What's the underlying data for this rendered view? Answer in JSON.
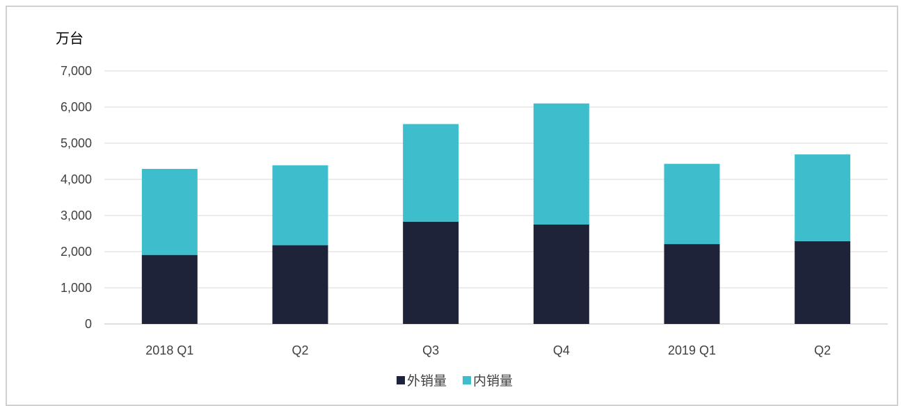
{
  "chart_data": {
    "type": "bar",
    "stacked": true,
    "ylabel": "万台",
    "ylim": [
      0,
      7000
    ],
    "yticks": [
      0,
      1000,
      2000,
      3000,
      4000,
      5000,
      6000,
      7000
    ],
    "ytick_labels": [
      "0",
      "1,000",
      "2,000",
      "3,000",
      "4,000",
      "5,000",
      "6,000",
      "7,000"
    ],
    "categories": [
      "2018 Q1",
      "Q2",
      "Q3",
      "Q4",
      "2019 Q1",
      "Q2"
    ],
    "series": [
      {
        "name": "外销量",
        "color": "#1f2339",
        "values": [
          1910,
          2180,
          2830,
          2750,
          2210,
          2290
        ]
      },
      {
        "name": "内销量",
        "color": "#3ebdcc",
        "values": [
          2380,
          2210,
          2700,
          3350,
          2220,
          2400
        ]
      }
    ],
    "grid": true,
    "legend_position": "bottom"
  }
}
